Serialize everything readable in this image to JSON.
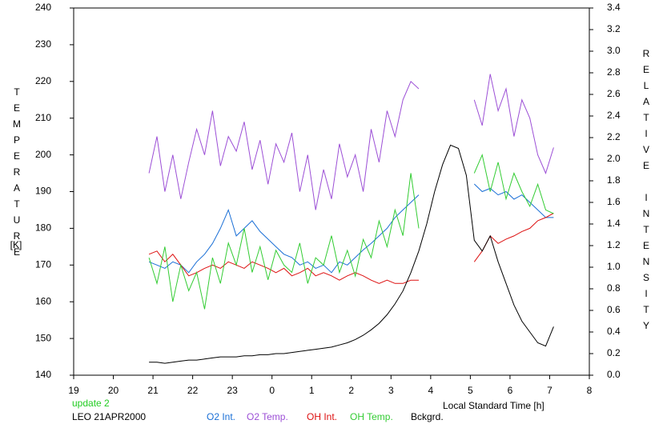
{
  "chart_data": {
    "type": "line",
    "ylabel": "TEMPERATURE",
    "ylabel_unit": "[K]",
    "y2label": "RELATIVE INTENSITY",
    "xlabel": "Local Standard Time [h]",
    "annotations": [
      {
        "text": "update 2",
        "color": "#22cc22"
      },
      {
        "text": "LEO 21APR2000",
        "color": "#000000"
      }
    ],
    "xlim": [
      19,
      32
    ],
    "xticks": [
      19,
      20,
      21,
      22,
      23,
      {
        "value": 24,
        "label": "0"
      },
      {
        "value": 25,
        "label": "1"
      },
      {
        "value": 26,
        "label": "2"
      },
      {
        "value": 27,
        "label": "3"
      },
      {
        "value": 28,
        "label": "4"
      },
      {
        "value": 29,
        "label": "5"
      },
      {
        "value": 30,
        "label": "6"
      },
      {
        "value": 31,
        "label": "7"
      },
      {
        "value": 32,
        "label": "8"
      }
    ],
    "ylim": [
      140,
      240
    ],
    "yticks": [
      140,
      150,
      160,
      170,
      180,
      190,
      200,
      210,
      220,
      230,
      240
    ],
    "y2lim": [
      0,
      3.4
    ],
    "y2ticks": [
      {
        "value": 0,
        "label": "0.0"
      },
      0.2,
      0.4,
      0.6,
      0.8,
      {
        "value": 1,
        "label": "1.0"
      },
      1.2,
      1.4,
      1.6,
      1.8,
      {
        "value": 2,
        "label": "2.0"
      },
      2.2,
      2.4,
      2.6,
      2.8,
      {
        "value": 3,
        "label": "3.0"
      },
      3.2,
      3.4
    ],
    "x": [
      20.9,
      21.1,
      21.3,
      21.5,
      21.7,
      21.9,
      22.1,
      22.3,
      22.5,
      22.7,
      22.9,
      23.1,
      23.3,
      23.5,
      23.7,
      23.9,
      24.1,
      24.3,
      24.5,
      24.7,
      24.9,
      25.1,
      25.3,
      25.5,
      25.7,
      25.9,
      26.1,
      26.3,
      26.5,
      26.7,
      26.9,
      27.1,
      27.3,
      27.5,
      27.7,
      27.9,
      28.1,
      28.3,
      28.5,
      28.7,
      28.9,
      29.1,
      29.3,
      29.5,
      29.7,
      29.9,
      30.1,
      30.3,
      30.5,
      30.7,
      30.9,
      31.1
    ],
    "series": [
      {
        "name": "O2 Int.",
        "color": "#1a6fd6",
        "axis": "y2",
        "values": [
          1.05,
          1.02,
          0.99,
          1.05,
          1.02,
          0.95,
          1.05,
          1.12,
          1.22,
          1.36,
          1.53,
          1.29,
          1.36,
          1.43,
          1.33,
          1.26,
          1.19,
          1.12,
          1.09,
          1.02,
          1.05,
          0.99,
          1.02,
          0.95,
          1.05,
          1.02,
          1.09,
          1.16,
          1.22,
          1.29,
          1.36,
          1.46,
          1.53,
          1.6,
          1.67,
          null,
          null,
          null,
          null,
          null,
          null,
          1.77,
          1.7,
          1.73,
          1.67,
          1.7,
          1.63,
          1.67,
          1.6,
          1.53,
          1.46,
          1.46
        ]
      },
      {
        "name": "O2 Temp.",
        "color": "#9c4fd6",
        "values": [
          195,
          205,
          190,
          200,
          188,
          198,
          207,
          200,
          212,
          197,
          205,
          201,
          209,
          196,
          204,
          192,
          203,
          198,
          206,
          190,
          200,
          185,
          196,
          188,
          203,
          194,
          200,
          190,
          207,
          198,
          212,
          205,
          215,
          220,
          218,
          null,
          null,
          null,
          null,
          null,
          null,
          215,
          208,
          222,
          212,
          218,
          205,
          215,
          210,
          200,
          195,
          202
        ]
      },
      {
        "name": "OH Int.",
        "color": "#dd1111",
        "axis": "y2",
        "values": [
          1.12,
          1.15,
          1.05,
          1.12,
          1.02,
          0.92,
          0.95,
          0.99,
          1.02,
          0.99,
          1.05,
          1.02,
          0.99,
          1.05,
          1.02,
          0.99,
          0.95,
          0.99,
          0.92,
          0.95,
          0.99,
          0.92,
          0.95,
          0.92,
          0.88,
          0.92,
          0.95,
          0.92,
          0.88,
          0.85,
          0.88,
          0.85,
          0.85,
          0.88,
          0.88,
          null,
          null,
          null,
          null,
          null,
          null,
          1.05,
          1.15,
          1.29,
          1.22,
          1.26,
          1.29,
          1.33,
          1.36,
          1.43,
          1.46,
          1.5
        ]
      },
      {
        "name": "OH Temp.",
        "color": "#33cc33",
        "values": [
          172,
          165,
          175,
          160,
          170,
          163,
          168,
          158,
          172,
          165,
          176,
          170,
          180,
          168,
          175,
          166,
          174,
          170,
          168,
          176,
          165,
          172,
          170,
          178,
          168,
          174,
          167,
          177,
          172,
          182,
          175,
          185,
          178,
          195,
          180,
          null,
          null,
          null,
          null,
          null,
          null,
          195,
          200,
          190,
          198,
          188,
          195,
          190,
          186,
          192,
          185,
          184
        ]
      },
      {
        "name": "Bckgrd.",
        "color": "#000000",
        "axis": "y2",
        "values": [
          0.12,
          0.12,
          0.11,
          0.12,
          0.13,
          0.14,
          0.14,
          0.15,
          0.16,
          0.17,
          0.17,
          0.17,
          0.18,
          0.18,
          0.19,
          0.19,
          0.2,
          0.2,
          0.21,
          0.22,
          0.23,
          0.24,
          0.25,
          0.26,
          0.28,
          0.3,
          0.33,
          0.37,
          0.42,
          0.48,
          0.56,
          0.66,
          0.78,
          0.95,
          1.15,
          1.4,
          1.7,
          1.95,
          2.13,
          2.1,
          1.85,
          1.25,
          1.15,
          1.29,
          1.05,
          0.85,
          0.65,
          0.5,
          0.4,
          0.3,
          0.27,
          0.45
        ]
      }
    ]
  }
}
